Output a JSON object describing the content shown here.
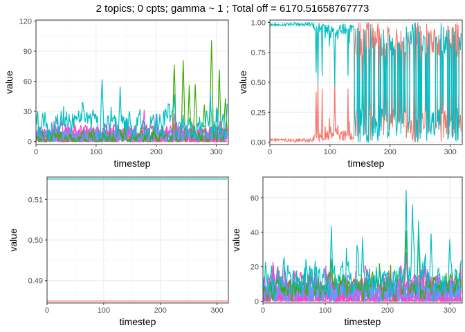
{
  "title": "2 topics; 0 cpts; gamma ~ 1 ; Total off =  6170.51658767773",
  "colors": {
    "c1": "#F8766D",
    "c2": "#A3A500",
    "c3": "#00BF7D",
    "c4": "#00B0F6",
    "c5": "#E76BF3",
    "teal": "#00BFC4",
    "red": "#F8766D",
    "green": "#3DAA00",
    "blue": "#619CFF",
    "pink": "#FF44CC"
  },
  "chart_data": [
    {
      "id": "top-left",
      "type": "line",
      "xlabel": "timestep",
      "ylabel": "value",
      "xlim": [
        0,
        320
      ],
      "ylim": [
        -3,
        121
      ],
      "xticks": [
        0,
        100,
        200,
        300
      ],
      "yticks": [
        0,
        30,
        60,
        90,
        120
      ],
      "grid": true,
      "series_profile": [
        {
          "color": "teal",
          "base": 22,
          "amp": 18,
          "spikes": [
            [
              110,
              72
            ],
            [
              140,
              58
            ],
            [
              230,
              55
            ],
            [
              290,
              50
            ],
            [
              318,
              40
            ]
          ]
        },
        {
          "color": "green",
          "base": 3,
          "amp": 10,
          "spikes": [
            [
              230,
              85
            ],
            [
              245,
              94
            ],
            [
              255,
              60
            ],
            [
              265,
              62
            ],
            [
              280,
              40
            ],
            [
              292,
              116
            ],
            [
              305,
              82
            ],
            [
              315,
              50
            ]
          ]
        },
        {
          "color": "blue",
          "base": 6,
          "amp": 8,
          "spikes": [
            [
              5,
              12
            ],
            [
              100,
              14
            ],
            [
              200,
              18
            ],
            [
              300,
              15
            ]
          ]
        },
        {
          "color": "pink",
          "base": 5,
          "amp": 10,
          "spikes": [
            [
              180,
              33
            ],
            [
              200,
              32
            ],
            [
              230,
              30
            ],
            [
              260,
              20
            ]
          ]
        },
        {
          "color": "red",
          "base": 2,
          "amp": 6,
          "spikes": [
            [
              150,
              20
            ],
            [
              230,
              18
            ]
          ]
        }
      ]
    },
    {
      "id": "top-right",
      "type": "line",
      "xlabel": "timestep",
      "ylabel": "value",
      "xlim": [
        0,
        320
      ],
      "ylim": [
        -0.02,
        1.02
      ],
      "xticks": [
        0,
        100,
        200,
        300
      ],
      "yticks": [
        0.0,
        0.25,
        0.5,
        0.75,
        1.0
      ],
      "ytick_labels": [
        "0.00",
        "0.25",
        "0.50",
        "0.75",
        "1.00"
      ],
      "grid": true,
      "series_profile": [
        {
          "color": "teal",
          "mode": "complement"
        },
        {
          "color": "red",
          "mode": "topic-share"
        }
      ]
    },
    {
      "id": "bottom-left",
      "type": "line",
      "xlabel": "timestep",
      "ylabel": "value",
      "xlim": [
        0,
        320
      ],
      "ylim": [
        0.4845,
        0.5155
      ],
      "xticks": [
        0,
        100,
        200,
        300
      ],
      "yticks": [
        0.49,
        0.5,
        0.51
      ],
      "ytick_labels": [
        "0.49",
        "0.50",
        "0.51"
      ],
      "grid": true,
      "series": [
        {
          "color": "teal",
          "x": [
            0,
            318
          ],
          "y": [
            0.515,
            0.515
          ]
        },
        {
          "color": "red",
          "x": [
            0,
            318
          ],
          "y": [
            0.485,
            0.485
          ]
        }
      ]
    },
    {
      "id": "bottom-right",
      "type": "line",
      "xlabel": "timestep",
      "ylabel": "value",
      "xlim": [
        0,
        320
      ],
      "ylim": [
        -1,
        72
      ],
      "xticks": [
        0,
        100,
        200,
        300
      ],
      "yticks": [
        0,
        20,
        40,
        60
      ],
      "grid": true,
      "series_profile": [
        {
          "color": "teal",
          "base": 14,
          "amp": 14,
          "spikes": [
            [
              110,
              45
            ],
            [
              160,
              40
            ],
            [
              230,
              70
            ],
            [
              240,
              62
            ],
            [
              250,
              50
            ],
            [
              270,
              45
            ],
            [
              300,
              40
            ]
          ]
        },
        {
          "color": "green",
          "base": 8,
          "amp": 10,
          "spikes": [
            [
              110,
              28
            ],
            [
              230,
              45
            ],
            [
              250,
              42
            ]
          ]
        },
        {
          "color": "blue",
          "base": 4,
          "amp": 8,
          "spikes": [
            [
              0,
              10
            ],
            [
              200,
              12
            ]
          ]
        },
        {
          "color": "pink",
          "base": 4,
          "amp": 12,
          "spikes": [
            [
              230,
              30
            ],
            [
              260,
              22
            ]
          ]
        },
        {
          "color": "red",
          "base": 1,
          "amp": 4,
          "spikes": []
        }
      ]
    }
  ]
}
